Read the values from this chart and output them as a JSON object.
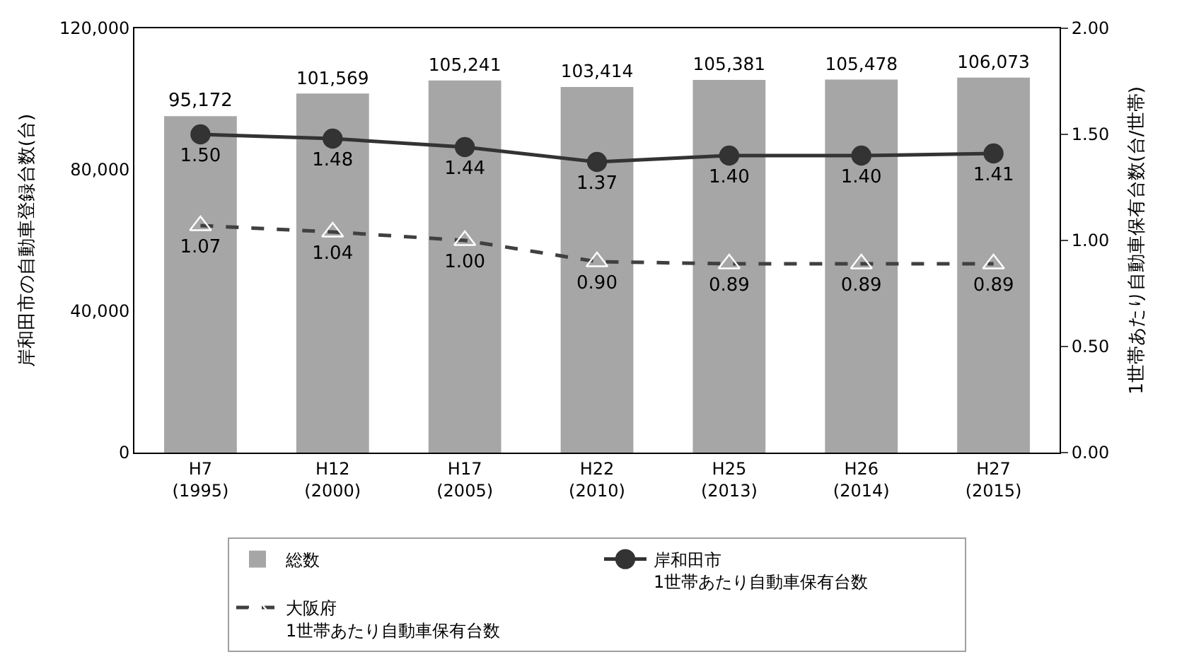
{
  "chart_data": {
    "type": "bar",
    "ylabel": "岸和田市の自動車登録台数(台)",
    "y2label": "1世帯あたり自動車保有台数(台/世帯)",
    "categories": [
      "H7\n(1995)",
      "H12\n(2000)",
      "H17\n(2005)",
      "H22\n(2010)",
      "H25\n(2013)",
      "H26\n(2014)",
      "H27\n(2015)"
    ],
    "series": [
      {
        "name": "総数",
        "color": "#a6a6a6",
        "values": [
          95172,
          101569,
          105241,
          103414,
          105381,
          105478,
          106073
        ],
        "value_labels": [
          "95,172",
          "101,569",
          "105,241",
          "103,414",
          "105,381",
          "105,478",
          "106,073"
        ]
      },
      {
        "name": "岸和田市\n1世帯あたり自動車保有台数",
        "type": "line",
        "axis": "y2",
        "color": "#333333",
        "marker": "circle",
        "line_style": "solid",
        "values": [
          1.5,
          1.48,
          1.44,
          1.37,
          1.4,
          1.4,
          1.41
        ],
        "value_labels": [
          "1.50",
          "1.48",
          "1.44",
          "1.37",
          "1.40",
          "1.40",
          "1.41"
        ]
      },
      {
        "name": "大阪府\n1世帯あたり自動車保有台数",
        "type": "line",
        "axis": "y2",
        "color": "#404040",
        "marker": "triangle",
        "line_style": "dashed",
        "values": [
          1.07,
          1.04,
          1.0,
          0.9,
          0.89,
          0.89,
          0.89
        ],
        "value_labels": [
          "1.07",
          "1.04",
          "1.00",
          "0.90",
          "0.89",
          "0.89",
          "0.89"
        ]
      }
    ],
    "ylim": [
      0,
      120000
    ],
    "yticks": [
      {
        "value": 0,
        "label": "0"
      },
      {
        "value": 40000,
        "label": "40,000"
      },
      {
        "value": 80000,
        "label": "80,000"
      },
      {
        "value": 120000,
        "label": "120,000"
      }
    ],
    "y2lim": [
      0,
      2
    ],
    "y2ticks": [
      {
        "value": 0,
        "label": "0.00"
      },
      {
        "value": 0.5,
        "label": "0.50"
      },
      {
        "value": 1,
        "label": "1.00"
      },
      {
        "value": 1.5,
        "label": "1.50"
      },
      {
        "value": 2,
        "label": "2.00"
      }
    ],
    "legend": "bottom"
  }
}
